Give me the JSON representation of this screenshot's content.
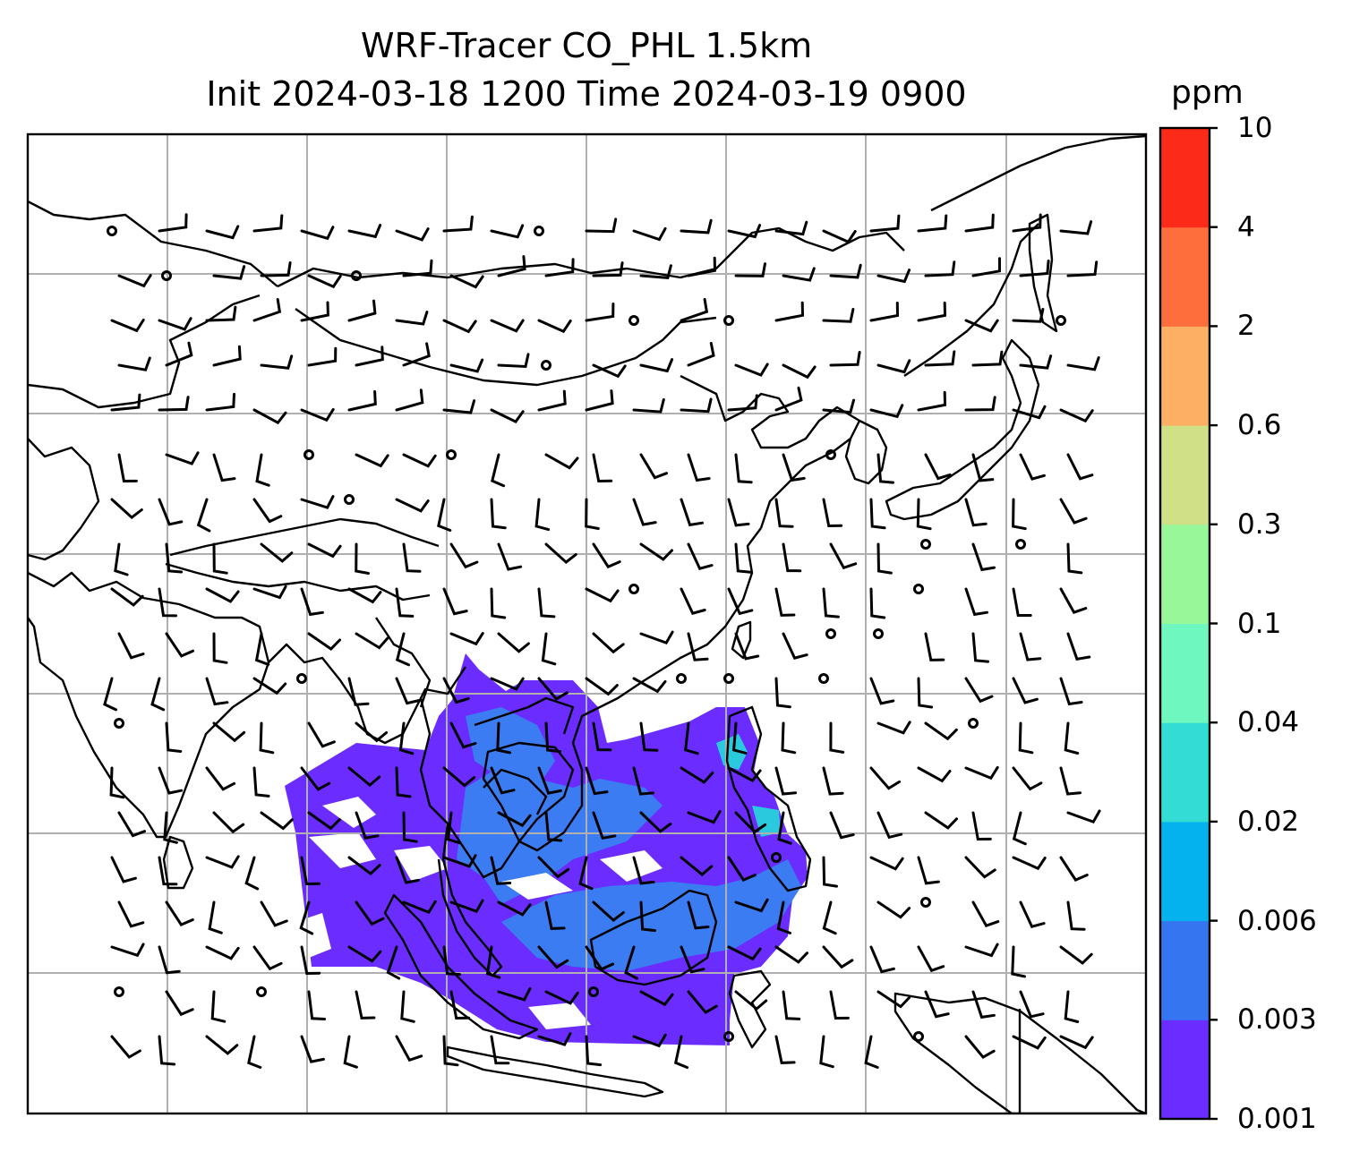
{
  "title_line1": "WRF-Tracer CO_PHL 1.5km",
  "title_line2": "Init 2024-03-18 1200 Time 2024-03-19 0900",
  "colorbar": {
    "unit": "ppm",
    "ticks": [
      "0.001",
      "0.003",
      "0.006",
      "0.02",
      "0.04",
      "0.1",
      "0.3",
      "0.6",
      "2",
      "4",
      "10"
    ],
    "colors": [
      "#6a2cff",
      "#3575f0",
      "#04b2ed",
      "#33dcd4",
      "#6ef8c0",
      "#98f799",
      "#cfe087",
      "#fdb063",
      "#fd6e3c",
      "#fc2a19"
    ]
  },
  "field_colors": {
    "low": "#6a2cff",
    "mid": "#3b7cf2",
    "high": "#2bc9dd"
  },
  "gridlines": true
}
